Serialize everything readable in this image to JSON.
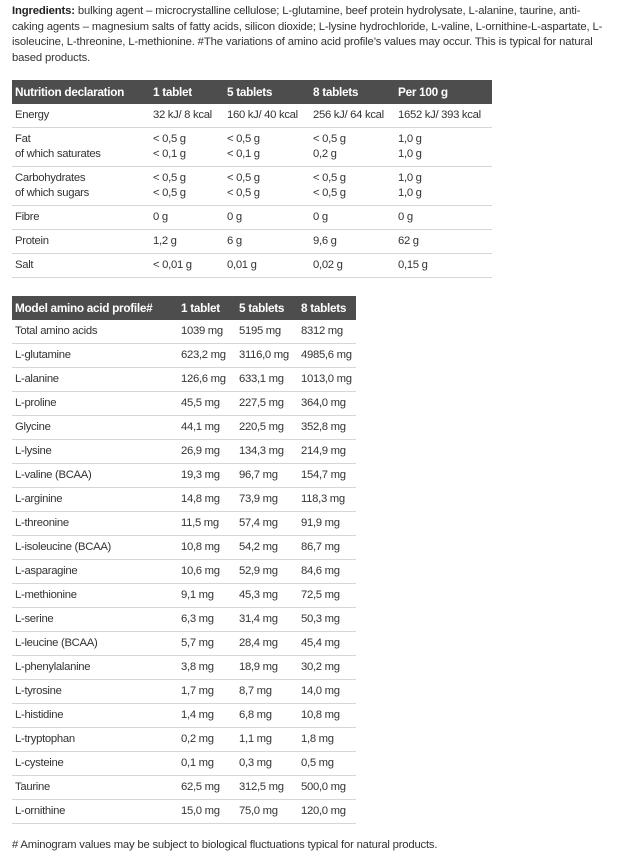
{
  "ingredients": {
    "label": "Ingredients:",
    "text": " bulking agent – microcrystalline cellulose; L-glutamine, beef protein hydrolysate, L-alanine, taurine, anti-caking agents – magnesium salts of fatty acids, silicon dioxide; L-lysine hydrochloride, L-valine, L-ornithine-L-aspartate, L-isoleucine, L-threonine, L-methionine. #The variations of amino acid profile’s values may occur. This is typical for natural based products."
  },
  "nutrition": {
    "headers": [
      "Nutrition declaration",
      "1 tablet",
      "5 tablets",
      "8 tablets",
      "Per 100 g"
    ],
    "rows": [
      [
        "Energy",
        "32 kJ/ 8 kcal",
        "160 kJ/ 40 kcal",
        "256 kJ/ 64 kcal",
        "1652 kJ/ 393 kcal"
      ],
      [
        "Fat\nof which saturates",
        "< 0,5 g\n< 0,1 g",
        "< 0,5 g\n< 0,1 g",
        "< 0,5 g\n0,2 g",
        "1,0 g\n1,0 g"
      ],
      [
        "Carbohydrates\nof which sugars",
        "< 0,5 g\n< 0,5 g",
        "< 0,5 g\n< 0,5 g",
        "< 0,5 g\n< 0,5 g",
        "1,0 g\n1,0 g"
      ],
      [
        "Fibre",
        "0 g",
        "0 g",
        "0 g",
        "0 g"
      ],
      [
        "Protein",
        "1,2 g",
        "6 g",
        "9,6 g",
        "62 g"
      ],
      [
        "Salt",
        "< 0,01 g",
        "0,01 g",
        "0,02 g",
        "0,15 g"
      ]
    ]
  },
  "amino": {
    "headers": [
      "Model amino acid profile#",
      "1 tablet",
      "5 tablets",
      "8 tablets"
    ],
    "rows": [
      [
        "Total amino acids",
        "1039 mg",
        "5195 mg",
        "8312 mg"
      ],
      [
        "L-glutamine",
        "623,2 mg",
        "3116,0 mg",
        "4985,6 mg"
      ],
      [
        "L-alanine",
        "126,6 mg",
        "633,1 mg",
        "1013,0 mg"
      ],
      [
        "L-proline",
        "45,5 mg",
        "227,5 mg",
        "364,0 mg"
      ],
      [
        "Glycine",
        "44,1 mg",
        "220,5 mg",
        "352,8 mg"
      ],
      [
        "L-lysine",
        "26,9 mg",
        "134,3 mg",
        "214,9 mg"
      ],
      [
        "L-valine (BCAA)",
        "19,3 mg",
        "96,7 mg",
        "154,7 mg"
      ],
      [
        "L-arginine",
        "14,8 mg",
        "73,9 mg",
        "118,3 mg"
      ],
      [
        "L-threonine",
        "11,5 mg",
        "57,4 mg",
        "91,9 mg"
      ],
      [
        "L-isoleucine (BCAA)",
        "10,8 mg",
        "54,2 mg",
        "86,7 mg"
      ],
      [
        "L-asparagine",
        "10,6 mg",
        "52,9 mg",
        "84,6 mg"
      ],
      [
        "L-methionine",
        "9,1 mg",
        "45,3 mg",
        "72,5 mg"
      ],
      [
        "L-serine",
        "6,3 mg",
        "31,4 mg",
        "50,3 mg"
      ],
      [
        "L-leucine (BCAA)",
        "5,7 mg",
        "28,4 mg",
        "45,4 mg"
      ],
      [
        "L-phenylalanine",
        "3,8 mg",
        "18,9 mg",
        "30,2 mg"
      ],
      [
        "L-tyrosine",
        "1,7 mg",
        "8,7 mg",
        "14,0 mg"
      ],
      [
        "L-histidine",
        "1,4 mg",
        "6,8 mg",
        "10,8 mg"
      ],
      [
        "L-tryptophan",
        "0,2 mg",
        "1,1 mg",
        "1,8 mg"
      ],
      [
        "L-cysteine",
        "0,1 mg",
        "0,3 mg",
        "0,5 mg"
      ],
      [
        "Taurine",
        "62,5 mg",
        "312,5 mg",
        "500,0 mg"
      ],
      [
        "L-ornithine",
        "15,0 mg",
        "75,0 mg",
        "120,0 mg"
      ]
    ]
  },
  "footnote": "# Aminogram values may be subject to biological fluctuations typical for natural products.",
  "colors": {
    "header_bg": "#4d4d4d",
    "header_text": "#ffffff",
    "row_border": "#d6d6d6"
  }
}
